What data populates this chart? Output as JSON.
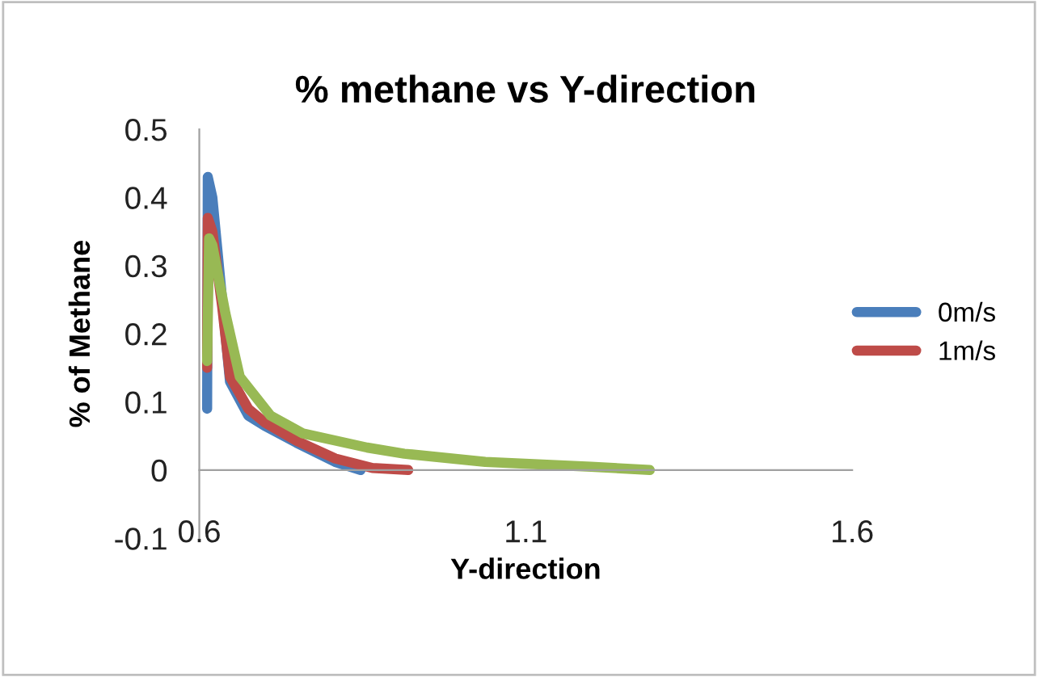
{
  "chart_data": {
    "type": "line",
    "title": "% methane vs Y-direction",
    "xlabel": "Y-direction",
    "ylabel": "% of Methane",
    "xlim": [
      0.6,
      1.6
    ],
    "xticks": [
      0.6,
      1.1,
      1.6
    ],
    "ylim": [
      -0.1,
      0.5
    ],
    "yticks": [
      -0.1,
      0,
      0.1,
      0.2,
      0.3,
      0.4,
      0.5
    ],
    "grid": false,
    "legend": "right",
    "marker": "none",
    "line_style": "solid",
    "series": [
      {
        "name": "0m/s",
        "color": "#4a7ebb",
        "x": [
          0.612,
          0.613,
          0.62,
          0.635,
          0.647,
          0.675,
          0.7,
          0.749,
          0.808,
          0.847
        ],
        "values": [
          0.09,
          0.43,
          0.4,
          0.25,
          0.13,
          0.08,
          0.065,
          0.04,
          0.012,
          0.0
        ]
      },
      {
        "name": "1m/s",
        "color": "#be4b48",
        "x": [
          0.612,
          0.613,
          0.62,
          0.635,
          0.647,
          0.675,
          0.7,
          0.749,
          0.808,
          0.865,
          0.92
        ],
        "values": [
          0.15,
          0.37,
          0.35,
          0.24,
          0.137,
          0.09,
          0.07,
          0.043,
          0.017,
          0.003,
          0.0
        ]
      },
      {
        "color": "#98b954",
        "x": [
          0.612,
          0.615,
          0.62,
          0.64,
          0.662,
          0.709,
          0.758,
          0.857,
          0.914,
          1.038,
          1.2,
          1.29
        ],
        "values": [
          0.16,
          0.34,
          0.33,
          0.23,
          0.137,
          0.08,
          0.054,
          0.033,
          0.024,
          0.012,
          0.005,
          0.0
        ]
      }
    ]
  }
}
